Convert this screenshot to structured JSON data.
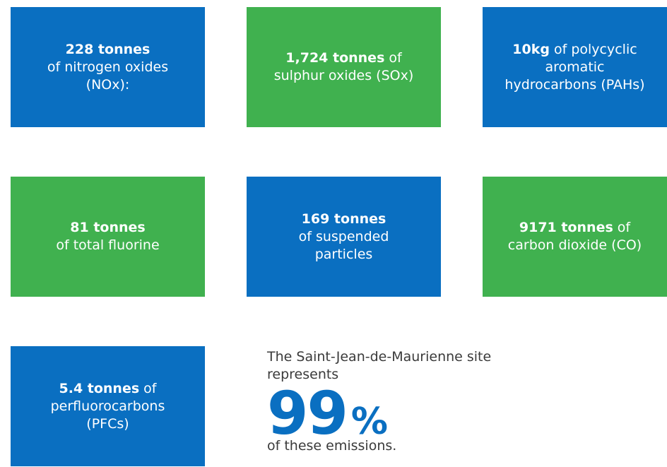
{
  "boxes": [
    {
      "color": "#0a6fc1",
      "lines": [
        {
          "bold": "228 tonnes"
        },
        {
          "text": "of nitrogen oxides"
        },
        {
          "text": "(NOx):"
        }
      ]
    },
    {
      "color": "#40b14f",
      "lines": [
        {
          "bold": "1,724 tonnes",
          "text": "of"
        },
        {
          "text": "sulphur oxides (SOx)"
        }
      ]
    },
    {
      "color": "#0a6fc1",
      "lines": [
        {
          "bold": "10kg",
          "text": "of polycyclic"
        },
        {
          "text": "aromatic"
        },
        {
          "text": "hydrocarbons (PAHs)"
        }
      ]
    },
    {
      "color": "#40b14f",
      "lines": [
        {
          "bold": "81 tonnes"
        },
        {
          "text": "of total fluorine"
        }
      ]
    },
    {
      "color": "#0a6fc1",
      "lines": [
        {
          "bold": "169 tonnes"
        },
        {
          "text": "of suspended"
        },
        {
          "text": "particles"
        }
      ]
    },
    {
      "color": "#40b14f",
      "lines": [
        {
          "bold": "9171 tonnes",
          "text": "of"
        },
        {
          "text": "carbon dioxide (CO)"
        }
      ]
    },
    {
      "color": "#0a6fc1",
      "lines": [
        {
          "bold": "5.4 tonnes",
          "text": "of"
        },
        {
          "text": "perfluorocarbons"
        },
        {
          "text": "(PFCs)"
        }
      ]
    }
  ],
  "statement": {
    "intro": "The Saint-Jean-de-Maurienne site represents",
    "figure": "99",
    "unit": "%",
    "outro": "of these emissions."
  }
}
